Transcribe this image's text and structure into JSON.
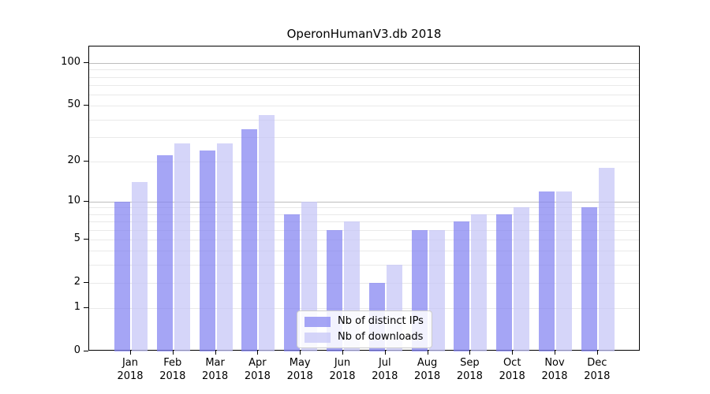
{
  "figure": {
    "background": "#ffffff"
  },
  "chart_data": {
    "type": "bar",
    "title": "OperonHumanV3.db 2018",
    "categories": [
      "Jan",
      "Feb",
      "Mar",
      "Apr",
      "May",
      "Jun",
      "Jul",
      "Aug",
      "Sep",
      "Oct",
      "Nov",
      "Dec"
    ],
    "category_year": "2018",
    "series": [
      {
        "key": "distinct-ips",
        "name": "Nb of distinct IPs",
        "color": "rgba(130,130,241,0.72)",
        "values": [
          10,
          22,
          24,
          34,
          8,
          6,
          2,
          6,
          7,
          8,
          12,
          9
        ]
      },
      {
        "key": "downloads",
        "name": "Nb of downloads",
        "color": "rgba(197,197,247,0.72)",
        "values": [
          14,
          27,
          27,
          43,
          10,
          7,
          3,
          6,
          8,
          9,
          12,
          18
        ]
      }
    ],
    "xlabel": "",
    "ylabel": "",
    "yscale": "log1p",
    "ylim": [
      0,
      130
    ],
    "yticks": [
      {
        "v": 100,
        "label": "100"
      },
      {
        "v": 50,
        "label": "50"
      },
      {
        "v": 20,
        "label": "20"
      },
      {
        "v": 10,
        "label": "10"
      },
      {
        "v": 5,
        "label": "5"
      },
      {
        "v": 2,
        "label": "2"
      },
      {
        "v": 1,
        "label": "1"
      },
      {
        "v": 0,
        "label": "0"
      }
    ],
    "gridlines": {
      "major_values": [
        10,
        100
      ],
      "minor_values": [
        1,
        2,
        3,
        4,
        5,
        6,
        7,
        8,
        9,
        20,
        30,
        40,
        50,
        60,
        70,
        80,
        90
      ],
      "major_color": "#bdbdbd",
      "minor_color": "#e9e9e9"
    },
    "legend": {
      "position": "lower-center",
      "background": "#ffffff",
      "border_color": "#cccccc"
    },
    "axis_color": "#000000"
  }
}
